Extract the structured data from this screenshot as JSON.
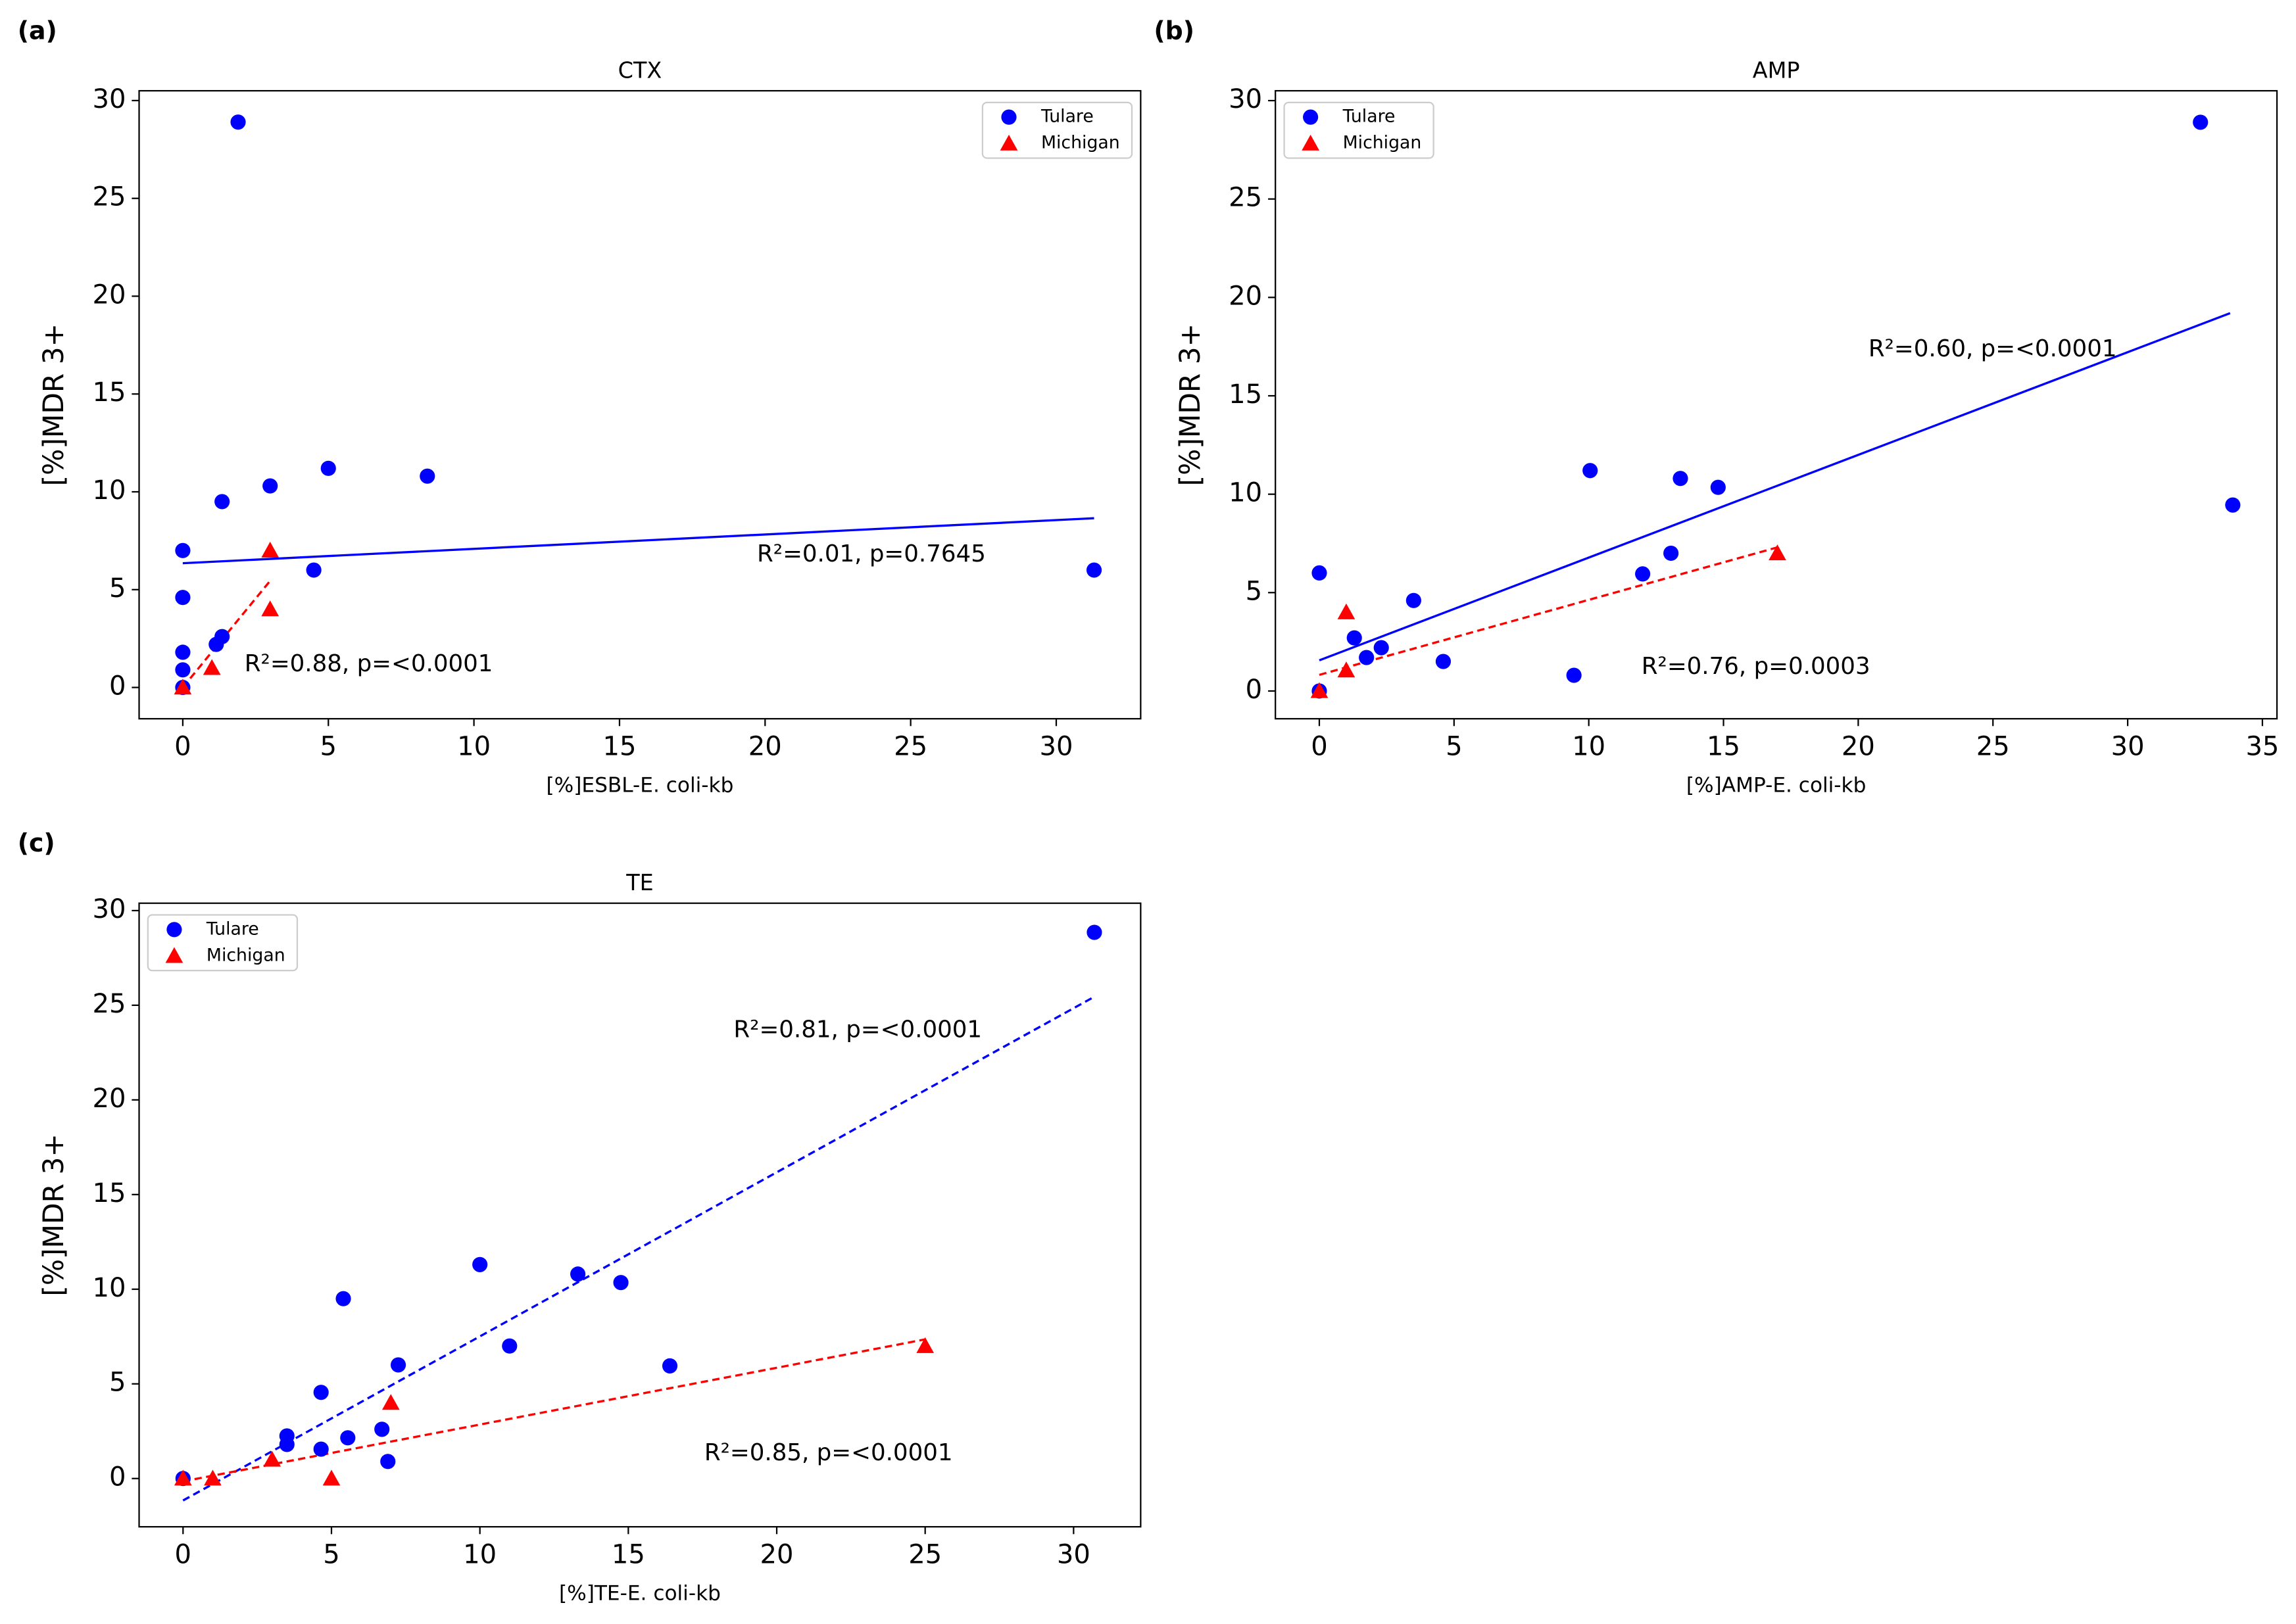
{
  "chart_data": [
    {
      "type": "scatter",
      "panel_label": "(a)",
      "title": "CTX",
      "xlabel": "[%]ESBL-E. coli-kb",
      "ylabel": "[%]MDR 3+",
      "xlim": [
        -1.5,
        32.9
      ],
      "ylim": [
        -1.6,
        30.5
      ],
      "xticks": [
        0,
        5,
        10,
        15,
        20,
        25,
        30
      ],
      "yticks": [
        0,
        5,
        10,
        15,
        20,
        25,
        30
      ],
      "legend": "upper right",
      "series": [
        {
          "name": "Tulare",
          "color": "#0000ff",
          "marker": "circle",
          "x": [
            1.9,
            0,
            1.35,
            3.0,
            5.0,
            8.4,
            4.5,
            31.3,
            0,
            0,
            0,
            0,
            1.35,
            1.15
          ],
          "y": [
            28.9,
            7.0,
            9.5,
            10.3,
            11.2,
            10.8,
            6.0,
            6.0,
            4.6,
            1.8,
            0.9,
            0,
            2.6,
            2.2
          ]
        },
        {
          "name": "Michigan",
          "color": "#ff0000",
          "marker": "triangle",
          "x": [
            0,
            1,
            3,
            3
          ],
          "y": [
            0,
            1.0,
            7.0,
            4.0
          ]
        }
      ],
      "trendlines": [
        {
          "color": "#0000ff",
          "style": "solid",
          "x": [
            0,
            31.3
          ],
          "y": [
            6.35,
            8.65
          ],
          "label": "R²=0.01, p=0.7645"
        },
        {
          "color": "#ff0000",
          "style": "dashed",
          "x": [
            0,
            3
          ],
          "y": [
            0,
            5.45
          ],
          "label": "R²=0.88, p=<0.0001"
        }
      ]
    },
    {
      "type": "scatter",
      "panel_label": "(b)",
      "title": "AMP",
      "xlabel": "[%]AMP-E. coli-kb",
      "ylabel": "[%]MDR 3+",
      "xlim": [
        -1.63,
        35.54
      ],
      "ylim": [
        -1.41,
        30.5
      ],
      "xticks": [
        0,
        5,
        10,
        15,
        20,
        25,
        30,
        35
      ],
      "yticks": [
        0,
        5,
        10,
        15,
        20,
        25,
        30
      ],
      "legend": "upper left",
      "series": [
        {
          "name": "Tulare",
          "color": "#0000ff",
          "marker": "circle",
          "x": [
            32.7,
            33.9,
            10.05,
            13.4,
            14.8,
            12.0,
            13.05,
            3.5,
            0,
            1.3,
            2.3,
            1.75,
            4.6,
            9.45,
            0
          ],
          "y": [
            28.9,
            9.45,
            11.2,
            10.8,
            10.35,
            5.95,
            7.0,
            4.6,
            6.0,
            2.7,
            2.2,
            1.7,
            1.5,
            0.8,
            0
          ]
        },
        {
          "name": "Michigan",
          "color": "#ff0000",
          "marker": "triangle",
          "x": [
            0,
            1.0,
            1.0,
            17.0
          ],
          "y": [
            0,
            4.0,
            1.05,
            7.0
          ]
        }
      ],
      "trendlines": [
        {
          "color": "#0000ff",
          "style": "solid",
          "x": [
            0,
            33.8
          ],
          "y": [
            1.56,
            19.2
          ],
          "label": "R²=0.60, p=<0.0001"
        },
        {
          "color": "#ff0000",
          "style": "dashed",
          "x": [
            0,
            17
          ],
          "y": [
            0.82,
            7.3
          ],
          "label": "R²=0.76, p=0.0003"
        }
      ]
    },
    {
      "type": "scatter",
      "panel_label": "(c)",
      "title": "TE",
      "xlabel": "[%]TE-E. coli-kb",
      "ylabel": "[%]MDR 3+",
      "xlim": [
        -1.48,
        32.26
      ],
      "ylim": [
        -2.55,
        30.39
      ],
      "xticks": [
        0,
        5,
        10,
        15,
        20,
        25,
        30
      ],
      "yticks": [
        0,
        5,
        10,
        15,
        20,
        25,
        30
      ],
      "legend": "upper left",
      "series": [
        {
          "name": "Tulare",
          "color": "#0000ff",
          "marker": "circle",
          "x": [
            30.7,
            0,
            10.0,
            13.3,
            14.75,
            11.0,
            16.4,
            7.25,
            5.4,
            4.65,
            3.5,
            3.5,
            4.65,
            5.55,
            6.7,
            6.9
          ],
          "y": [
            28.85,
            0,
            11.3,
            10.8,
            10.35,
            7.0,
            5.95,
            6.0,
            9.5,
            4.55,
            2.25,
            1.8,
            1.55,
            2.15,
            2.6,
            0.9
          ]
        },
        {
          "name": "Michigan",
          "color": "#ff0000",
          "marker": "triangle",
          "x": [
            0,
            1.0,
            3.0,
            5.0,
            7.0,
            25.0
          ],
          "y": [
            0,
            0,
            1.0,
            0,
            4.0,
            7.0
          ]
        }
      ],
      "trendlines": [
        {
          "color": "#0000ff",
          "style": "dashed",
          "x": [
            0,
            30.7
          ],
          "y": [
            -1.16,
            25.45
          ],
          "label": "R²=0.81, p=<0.0001"
        },
        {
          "color": "#ff0000",
          "style": "dashed",
          "x": [
            0,
            25
          ],
          "y": [
            -0.15,
            7.35
          ],
          "label": "R²=0.85, p=<0.0001"
        }
      ]
    }
  ]
}
